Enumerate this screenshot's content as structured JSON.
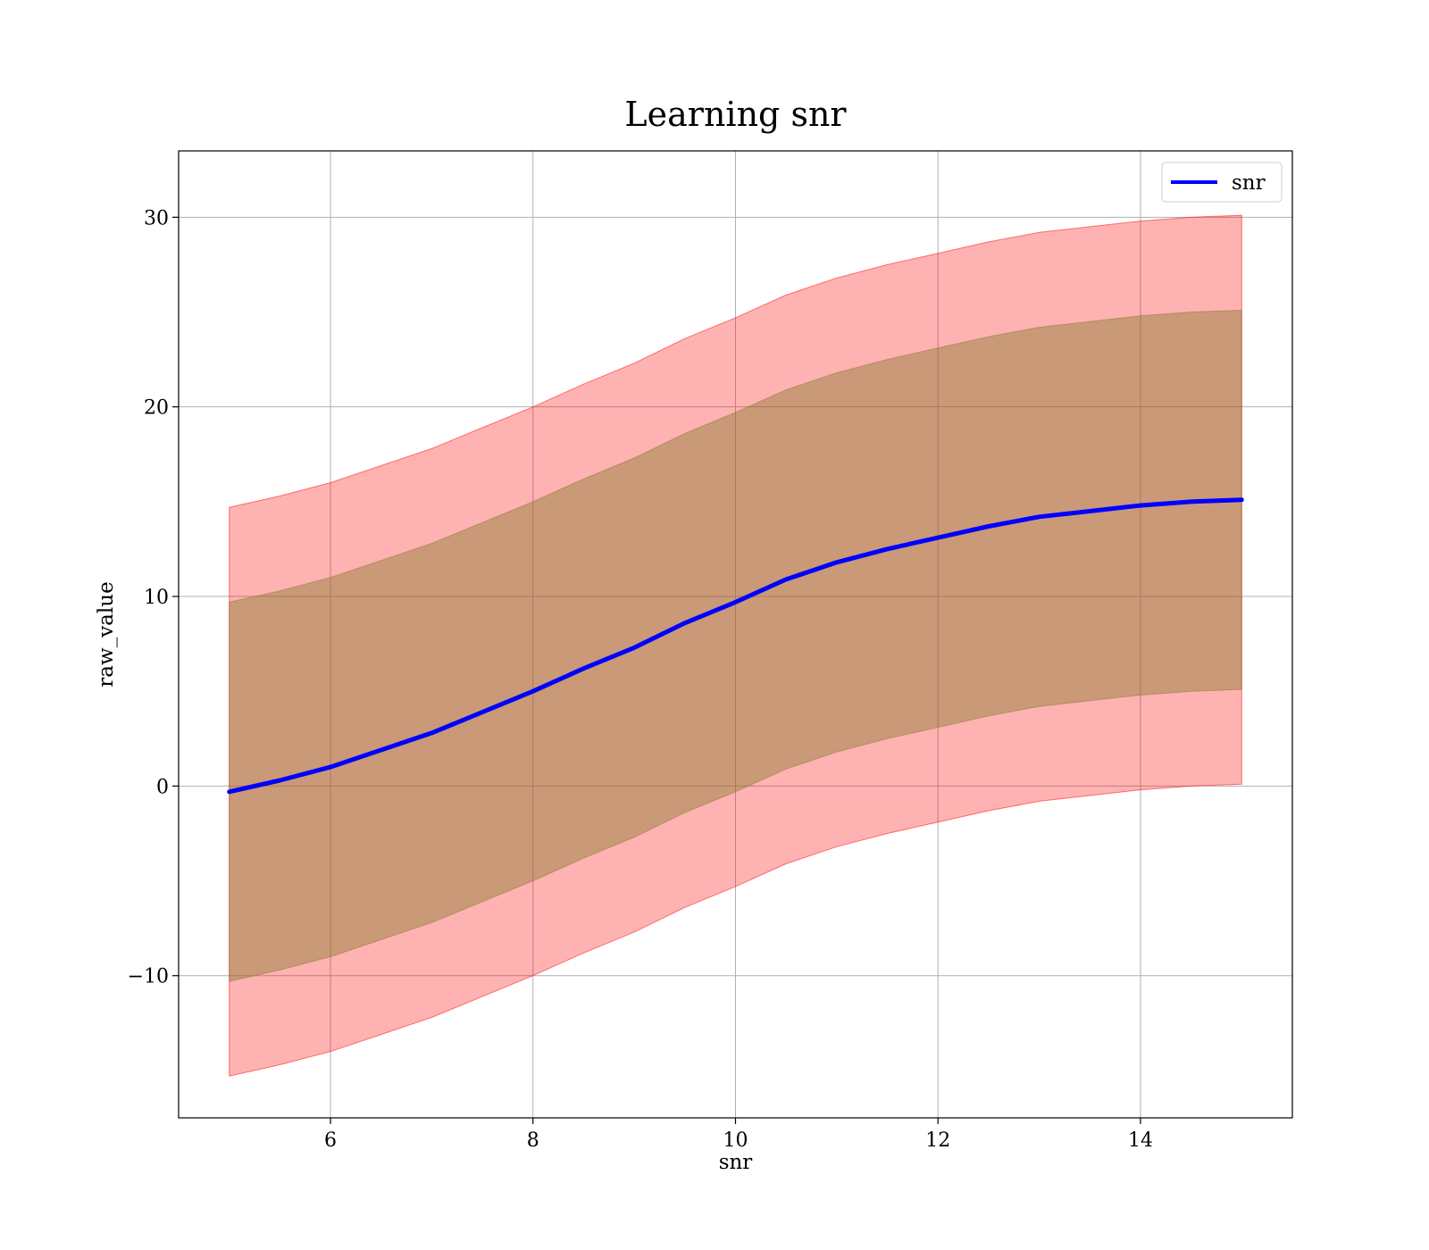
{
  "chart_data": {
    "type": "line",
    "title": "Learning snr",
    "xlabel": "snr",
    "ylabel": "raw_value",
    "xlim": [
      4.5,
      15.5
    ],
    "ylim": [
      -17.5,
      33.5
    ],
    "grid": true,
    "legend_position": "top-right",
    "x_ticks": [
      {
        "value": 6,
        "label": "6"
      },
      {
        "value": 8,
        "label": "8"
      },
      {
        "value": 10,
        "label": "10"
      },
      {
        "value": 12,
        "label": "12"
      },
      {
        "value": 14,
        "label": "14"
      }
    ],
    "y_ticks": [
      {
        "value": -10,
        "label": "−10"
      },
      {
        "value": 0,
        "label": "0"
      },
      {
        "value": 10,
        "label": "10"
      },
      {
        "value": 20,
        "label": "20"
      },
      {
        "value": 30,
        "label": "30"
      }
    ],
    "x": [
      5.0,
      5.5,
      6.0,
      6.5,
      7.0,
      7.5,
      8.0,
      8.5,
      9.0,
      9.5,
      10.0,
      10.5,
      11.0,
      11.5,
      12.0,
      12.5,
      13.0,
      13.5,
      14.0,
      14.5,
      15.0
    ],
    "series": [
      {
        "name": "snr",
        "color": "#0000ff",
        "values": [
          -0.3,
          0.3,
          1.0,
          1.9,
          2.8,
          3.9,
          5.0,
          6.2,
          7.3,
          8.6,
          9.7,
          10.9,
          11.8,
          12.5,
          13.1,
          13.7,
          14.2,
          14.5,
          14.8,
          15.0,
          15.1
        ]
      }
    ],
    "bands": [
      {
        "color": "#ff0000",
        "opacity": 0.3,
        "upper": [
          14.7,
          15.3,
          16.0,
          16.9,
          17.8,
          18.9,
          20.0,
          21.2,
          22.3,
          23.6,
          24.7,
          25.9,
          26.8,
          27.5,
          28.1,
          28.7,
          29.2,
          29.5,
          29.8,
          30.0,
          30.1
        ],
        "lower": [
          -15.3,
          -14.7,
          -14.0,
          -13.1,
          -12.2,
          -11.1,
          -10.0,
          -8.8,
          -7.7,
          -6.4,
          -5.3,
          -4.1,
          -3.2,
          -2.5,
          -1.9,
          -1.3,
          -0.8,
          -0.5,
          -0.2,
          0.0,
          0.1
        ]
      },
      {
        "color": "#8a7a30",
        "opacity": 0.45,
        "upper": [
          9.7,
          10.3,
          11.0,
          11.9,
          12.8,
          13.9,
          15.0,
          16.2,
          17.3,
          18.6,
          19.7,
          20.9,
          21.8,
          22.5,
          23.1,
          23.7,
          24.2,
          24.5,
          24.8,
          25.0,
          25.1
        ],
        "lower": [
          -10.3,
          -9.7,
          -9.0,
          -8.1,
          -7.2,
          -6.1,
          -5.0,
          -3.8,
          -2.7,
          -1.4,
          -0.3,
          0.9,
          1.8,
          2.5,
          3.1,
          3.7,
          4.2,
          4.5,
          4.8,
          5.0,
          5.1
        ]
      }
    ]
  }
}
